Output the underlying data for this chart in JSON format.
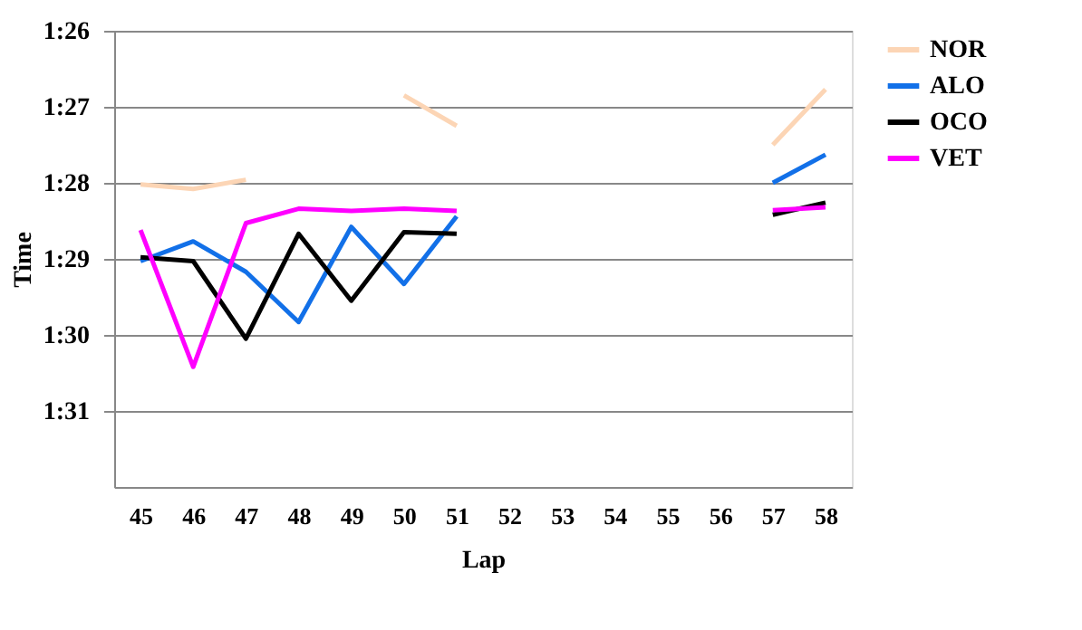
{
  "chart_data": {
    "type": "line",
    "xlabel": "Lap",
    "ylabel": "Time",
    "categories": [
      "45",
      "46",
      "47",
      "48",
      "49",
      "50",
      "51",
      "52",
      "53",
      "54",
      "55",
      "56",
      "57",
      "58"
    ],
    "series": [
      {
        "name": "NOR",
        "color": "#fcd5b5",
        "values": [
          88.02,
          88.08,
          87.96,
          null,
          null,
          86.85,
          87.25,
          null,
          null,
          null,
          null,
          null,
          87.5,
          86.77
        ]
      },
      {
        "name": "ALO",
        "color": "#1270e8",
        "values": [
          89.03,
          88.77,
          89.17,
          89.83,
          88.58,
          89.33,
          88.44,
          null,
          null,
          null,
          null,
          null,
          88.0,
          87.63
        ]
      },
      {
        "name": "OCO",
        "color": "#000000",
        "values": [
          88.98,
          89.03,
          90.05,
          88.67,
          89.55,
          88.65,
          88.67,
          null,
          null,
          null,
          null,
          null,
          88.42,
          88.26
        ]
      },
      {
        "name": "VET",
        "color": "#ff00ff",
        "values": [
          88.62,
          90.42,
          88.53,
          88.34,
          88.37,
          88.34,
          88.37,
          null,
          null,
          null,
          null,
          null,
          88.36,
          88.32
        ]
      }
    ],
    "ylim": [
      92,
      86
    ],
    "yticks": [
      {
        "value": 86,
        "label": "1:26"
      },
      {
        "value": 87,
        "label": "1:27"
      },
      {
        "value": 88,
        "label": "1:28"
      },
      {
        "value": 89,
        "label": "1:29"
      },
      {
        "value": 90,
        "label": "1:30"
      },
      {
        "value": 91,
        "label": "1:31"
      }
    ],
    "grid": "y",
    "legend": "right",
    "marker": "none",
    "line_style": "solid"
  }
}
